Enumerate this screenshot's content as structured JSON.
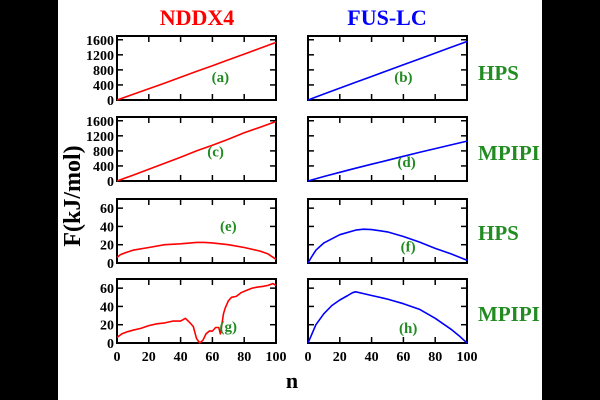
{
  "figure": {
    "column_titles": [
      {
        "text": "NDDX4",
        "color": "#ff0000"
      },
      {
        "text": "FUS-LC",
        "color": "#0000ff"
      }
    ],
    "row_labels": [
      {
        "text": "HPS",
        "color": "#228b22"
      },
      {
        "text": "MPIPI",
        "color": "#228b22"
      },
      {
        "text": "HPS",
        "color": "#228b22"
      },
      {
        "text": "MPIPI",
        "color": "#228b22"
      }
    ],
    "ylabel": "F(kJ/mol)",
    "xlabel": "n",
    "background": "#ffffff",
    "outer_background": "#000000",
    "panel_label_color": "#228b22"
  },
  "chart_data": [
    {
      "id": "a",
      "type": "line",
      "panel_label": "(a)",
      "color": "#ff0000",
      "xlim": [
        0,
        100
      ],
      "ylim": [
        0,
        1700
      ],
      "yticks": [
        0,
        400,
        800,
        1200,
        1600
      ],
      "ytick_labels": [
        "0",
        "400",
        "800",
        "1200",
        "1600"
      ],
      "xticks": [
        0,
        20,
        40,
        60,
        80,
        100
      ],
      "xtick_labels": [
        "",
        "",
        "",
        "",
        "",
        ""
      ],
      "x": [
        0,
        10,
        20,
        30,
        40,
        50,
        60,
        70,
        80,
        90,
        100
      ],
      "y": [
        0,
        150,
        300,
        450,
        605,
        760,
        910,
        1065,
        1220,
        1375,
        1530
      ]
    },
    {
      "id": "b",
      "type": "line",
      "panel_label": "(b)",
      "color": "#0000ff",
      "xlim": [
        0,
        100
      ],
      "ylim": [
        0,
        1700
      ],
      "yticks": [
        0,
        400,
        800,
        1200,
        1600
      ],
      "ytick_labels": [
        "",
        "",
        "",
        "",
        ""
      ],
      "xticks": [
        0,
        20,
        40,
        60,
        80,
        100
      ],
      "xtick_labels": [
        "",
        "",
        "",
        "",
        "",
        ""
      ],
      "x": [
        0,
        10,
        20,
        30,
        40,
        50,
        60,
        70,
        80,
        90,
        100
      ],
      "y": [
        0,
        160,
        315,
        470,
        625,
        780,
        935,
        1090,
        1245,
        1400,
        1555
      ]
    },
    {
      "id": "c",
      "type": "line",
      "panel_label": "(c)",
      "color": "#ff0000",
      "xlim": [
        0,
        100
      ],
      "ylim": [
        0,
        1700
      ],
      "yticks": [
        0,
        400,
        800,
        1200,
        1600
      ],
      "ytick_labels": [
        "0",
        "400",
        "800",
        "1200",
        "1600"
      ],
      "xticks": [
        0,
        20,
        40,
        60,
        80,
        100
      ],
      "xtick_labels": [
        "",
        "",
        "",
        "",
        "",
        ""
      ],
      "x": [
        0,
        10,
        20,
        30,
        40,
        50,
        60,
        70,
        80,
        90,
        100
      ],
      "y": [
        0,
        155,
        310,
        470,
        630,
        800,
        950,
        1110,
        1280,
        1430,
        1580
      ]
    },
    {
      "id": "d",
      "type": "line",
      "panel_label": "(d)",
      "color": "#0000ff",
      "xlim": [
        0,
        100
      ],
      "ylim": [
        0,
        1700
      ],
      "yticks": [
        0,
        400,
        800,
        1200,
        1600
      ],
      "ytick_labels": [
        "",
        "",
        "",
        "",
        ""
      ],
      "xticks": [
        0,
        20,
        40,
        60,
        80,
        100
      ],
      "xtick_labels": [
        "",
        "",
        "",
        "",
        "",
        ""
      ],
      "x": [
        0,
        10,
        20,
        30,
        40,
        50,
        60,
        70,
        80,
        90,
        100
      ],
      "y": [
        0,
        120,
        230,
        340,
        445,
        550,
        655,
        760,
        860,
        960,
        1060
      ]
    },
    {
      "id": "e",
      "type": "line",
      "panel_label": "(e)",
      "color": "#ff0000",
      "xlim": [
        0,
        100
      ],
      "ylim": [
        0,
        70
      ],
      "yticks": [
        0,
        20,
        40,
        60
      ],
      "ytick_labels": [
        "0",
        "20",
        "40",
        "60"
      ],
      "xticks": [
        0,
        20,
        40,
        60,
        80,
        100
      ],
      "xtick_labels": [
        "",
        "",
        "",
        "",
        "",
        ""
      ],
      "x": [
        0,
        2,
        5,
        10,
        20,
        30,
        40,
        50,
        55,
        60,
        70,
        80,
        90,
        95,
        100
      ],
      "y": [
        6,
        9,
        11,
        14,
        17,
        20,
        21,
        22.5,
        22.5,
        22,
        20,
        17,
        13,
        10,
        4
      ]
    },
    {
      "id": "f",
      "type": "line",
      "panel_label": "(f)",
      "color": "#0000ff",
      "xlim": [
        0,
        100
      ],
      "ylim": [
        0,
        70
      ],
      "yticks": [
        0,
        20,
        40,
        60
      ],
      "ytick_labels": [
        "",
        "",
        "",
        ""
      ],
      "xticks": [
        0,
        20,
        40,
        60,
        80,
        100
      ],
      "xtick_labels": [
        "",
        "",
        "",
        "",
        "",
        ""
      ],
      "x": [
        0,
        2,
        5,
        10,
        20,
        30,
        35,
        40,
        50,
        60,
        70,
        80,
        90,
        100
      ],
      "y": [
        0,
        6,
        14,
        22,
        31,
        36,
        37,
        36.5,
        34,
        29,
        23,
        16,
        10,
        3
      ]
    },
    {
      "id": "g",
      "type": "line",
      "panel_label": "(g)",
      "color": "#ff0000",
      "xlim": [
        0,
        100
      ],
      "ylim": [
        0,
        70
      ],
      "yticks": [
        0,
        20,
        40,
        60
      ],
      "ytick_labels": [
        "0",
        "20",
        "40",
        "60"
      ],
      "xticks": [
        0,
        20,
        40,
        60,
        80,
        100
      ],
      "xtick_labels": [
        "0",
        "20",
        "40",
        "60",
        "80",
        "100"
      ],
      "x": [
        0,
        3,
        6,
        10,
        15,
        20,
        25,
        30,
        35,
        40,
        43,
        46,
        48,
        50,
        52,
        54,
        56,
        58,
        60,
        62,
        64,
        65,
        67,
        68,
        70,
        72,
        75,
        78,
        82,
        85,
        88,
        92,
        95,
        98,
        100
      ],
      "y": [
        6,
        10,
        12,
        14,
        16,
        19,
        21,
        22,
        24,
        24,
        27,
        22,
        18,
        5,
        0,
        3,
        10,
        13,
        13,
        17,
        17,
        10,
        32,
        38,
        46,
        50,
        51,
        55,
        58,
        60,
        61,
        62,
        63,
        65,
        63
      ]
    },
    {
      "id": "h",
      "type": "line",
      "panel_label": "(h)",
      "color": "#0000ff",
      "xlim": [
        0,
        100
      ],
      "ylim": [
        0,
        70
      ],
      "yticks": [
        0,
        20,
        40,
        60
      ],
      "ytick_labels": [
        "",
        "",
        "",
        ""
      ],
      "xticks": [
        0,
        20,
        40,
        60,
        80,
        100
      ],
      "xtick_labels": [
        "0",
        "20",
        "40",
        "60",
        "80",
        "100"
      ],
      "x": [
        0,
        2,
        5,
        10,
        15,
        20,
        25,
        28,
        30,
        35,
        40,
        50,
        60,
        70,
        80,
        90,
        95,
        100
      ],
      "y": [
        0,
        8,
        20,
        32,
        41,
        47,
        52,
        55,
        56,
        54,
        52,
        48,
        43,
        37,
        27,
        15,
        8,
        0
      ]
    }
  ]
}
